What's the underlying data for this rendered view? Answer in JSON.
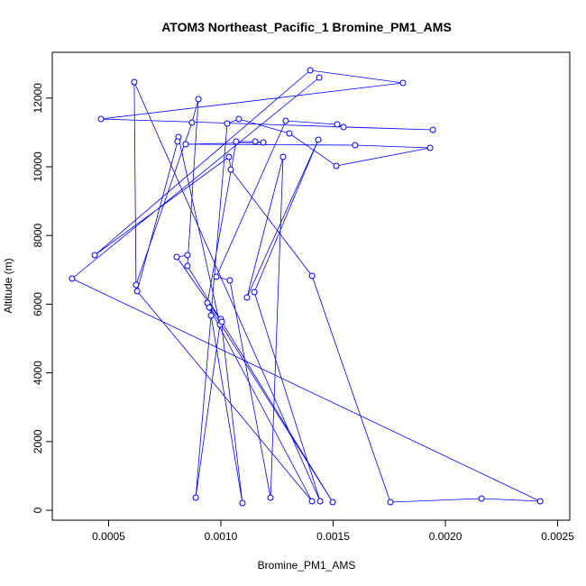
{
  "chart_data": {
    "type": "line",
    "title": "ATOM3 Northeast_Pacific_1 Bromine_PM1_AMS",
    "x_label": "Bromine_PM1_AMS",
    "y_label": "Altitude (m)",
    "color": "#0000ff",
    "markers": true,
    "x": [
      0.001438,
      0.000337,
      0.002422,
      0.002161,
      0.001755,
      0.001406,
      0.001044,
      0.001036,
      0.000438,
      0.001398,
      0.001811,
      0.000466,
      0.001944,
      0.001546,
      0.001518,
      0.001289,
      0.00098,
      0.00104,
      0.001221,
      0.001277,
      0.001116,
      0.001434,
      0.001149,
      0.001442,
      0.000614,
      0.000622,
      0.000871,
      0.0009,
      0.000851,
      0.001498,
      0.00094,
      0.001068,
      0.001153,
      0.001189,
      0.000843,
      0.001598,
      0.001932,
      0.001514,
      0.001305,
      0.00108,
      0.001028,
      0.000888,
      0.000996,
      0.000811,
      0.000807,
      0.000627,
      0.001406,
      0.000948,
      0.000956,
      0.001096,
      0.001,
      0.001004,
      0.000803,
      0.000851
    ],
    "values": [
      12598,
      6745,
      262,
      341,
      236,
      6824,
      9921,
      10289,
      7428,
      12808,
      12441,
      11391,
      11076,
      11155,
      11234,
      11339,
      6798,
      6693,
      367,
      10289,
      6194,
      10787,
      6352,
      262,
      12467,
      6562,
      11286,
      11969,
      7113,
      236,
      6037,
      10735,
      10735,
      10709,
      10656,
      10630,
      10551,
      10026,
      10971,
      11391,
      11260,
      367,
      5407,
      10866,
      10735,
      6378,
      262,
      5906,
      5669,
      210,
      5564,
      5486,
      7375,
      7428
    ],
    "xlim": [
      0.000249,
      0.002554
    ],
    "ylim": [
      -289,
      13333
    ],
    "xticks": [
      {
        "value": 0.0005,
        "label": "0.0005"
      },
      {
        "value": 0.001,
        "label": "0.0010"
      },
      {
        "value": 0.0015,
        "label": "0.0015"
      },
      {
        "value": 0.002,
        "label": "0.0020"
      },
      {
        "value": 0.0025,
        "label": "0.0025"
      }
    ],
    "yticks": [
      0,
      2000,
      4000,
      6000,
      8000,
      10000,
      12000
    ]
  }
}
